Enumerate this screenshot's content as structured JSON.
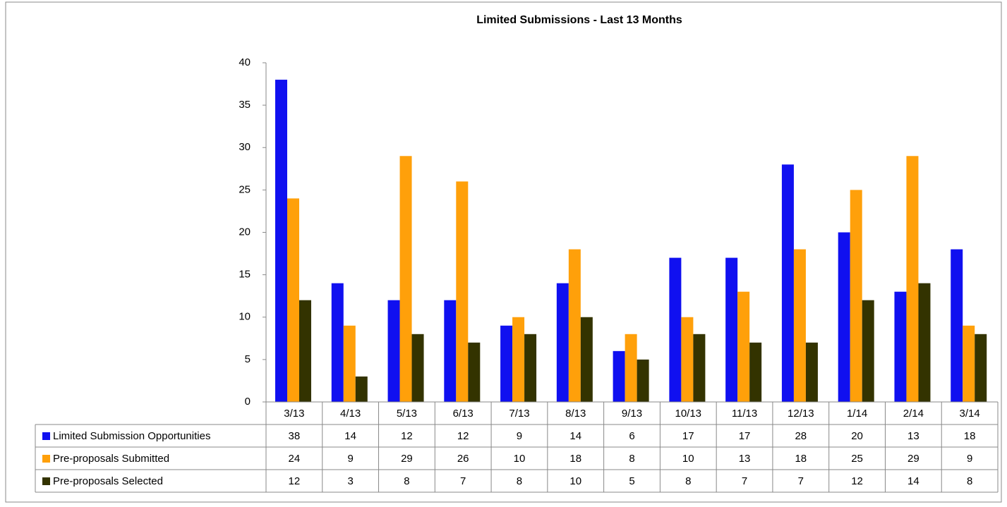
{
  "chart_data": {
    "type": "bar",
    "title": "Limited Submissions - Last 13 Months",
    "categories": [
      "3/13",
      "4/13",
      "5/13",
      "6/13",
      "7/13",
      "8/13",
      "9/13",
      "10/13",
      "11/13",
      "12/13",
      "1/14",
      "2/14",
      "3/14"
    ],
    "series": [
      {
        "name": "Limited Submission Opportunities",
        "color": "#1010f0",
        "values": [
          38,
          14,
          12,
          12,
          9,
          14,
          6,
          17,
          17,
          28,
          20,
          13,
          18
        ]
      },
      {
        "name": "Pre-proposals Submitted",
        "color": "#ffa00a",
        "values": [
          24,
          9,
          29,
          26,
          10,
          18,
          8,
          10,
          13,
          18,
          25,
          29,
          9
        ]
      },
      {
        "name": "Pre-proposals Selected",
        "color": "#333300",
        "values": [
          12,
          3,
          8,
          7,
          8,
          10,
          5,
          8,
          7,
          7,
          12,
          14,
          8
        ]
      }
    ],
    "ylim": [
      0,
      40
    ],
    "yticks": [
      0,
      5,
      10,
      15,
      20,
      25,
      30,
      35,
      40
    ],
    "grid": false
  }
}
